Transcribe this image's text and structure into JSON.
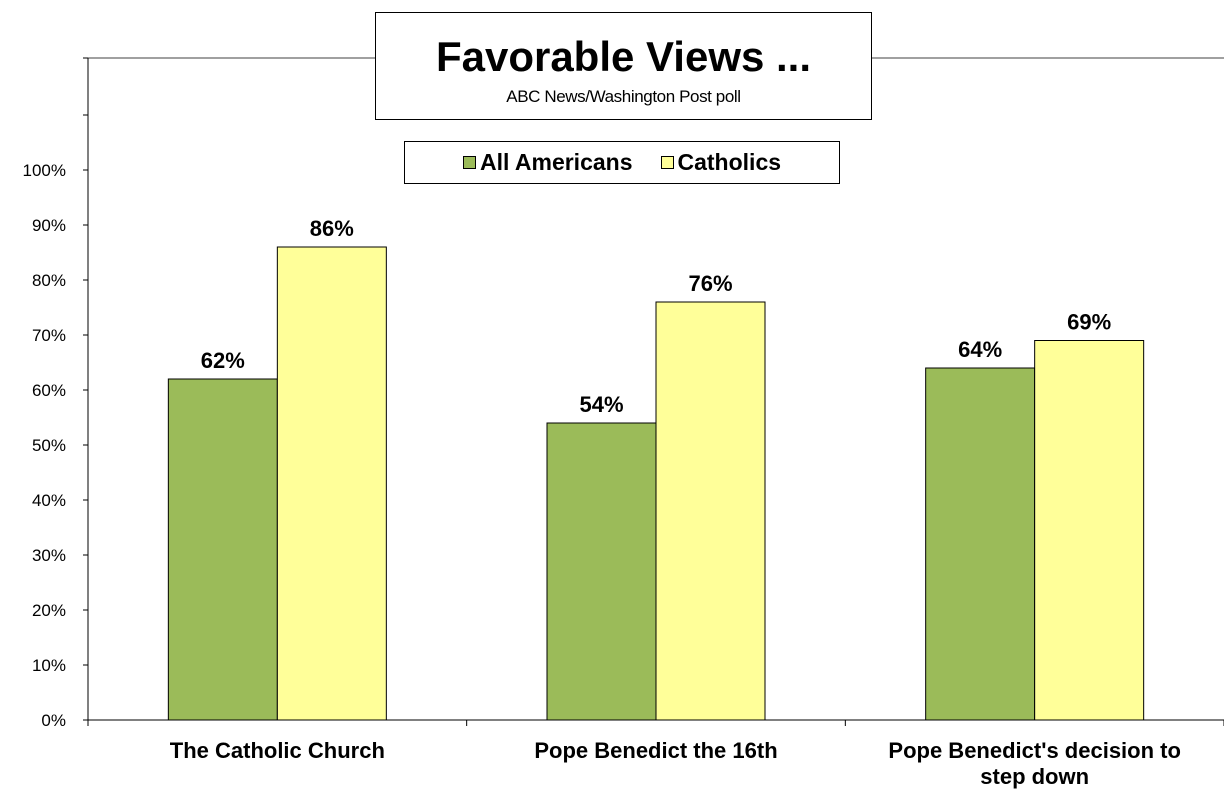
{
  "colors": {
    "all_americans": "#9bbb59",
    "catholics": "#ffff99",
    "axis": "#000000",
    "frame": "#808080"
  },
  "chart_data": {
    "type": "bar",
    "title": "Favorable Views ...",
    "subtitle": "ABC News/Washington  Post poll",
    "categories": [
      "The Catholic Church",
      "Pope Benedict the 16th",
      "Pope Benedict's decision to step down"
    ],
    "series": [
      {
        "name": "All Americans",
        "values": [
          62,
          54,
          64
        ],
        "labels": [
          "62%",
          "54%",
          "64%"
        ]
      },
      {
        "name": "Catholics",
        "values": [
          86,
          76,
          69
        ],
        "labels": [
          "86%",
          "76%",
          "69%"
        ]
      }
    ],
    "ylim": [
      0,
      100
    ],
    "y_ticks": [
      "0%",
      "10%",
      "20%",
      "30%",
      "40%",
      "50%",
      "60%",
      "70%",
      "80%",
      "90%",
      "100%"
    ],
    "xlabel": "",
    "ylabel": "",
    "grid": false,
    "legend_position": "top-center"
  }
}
